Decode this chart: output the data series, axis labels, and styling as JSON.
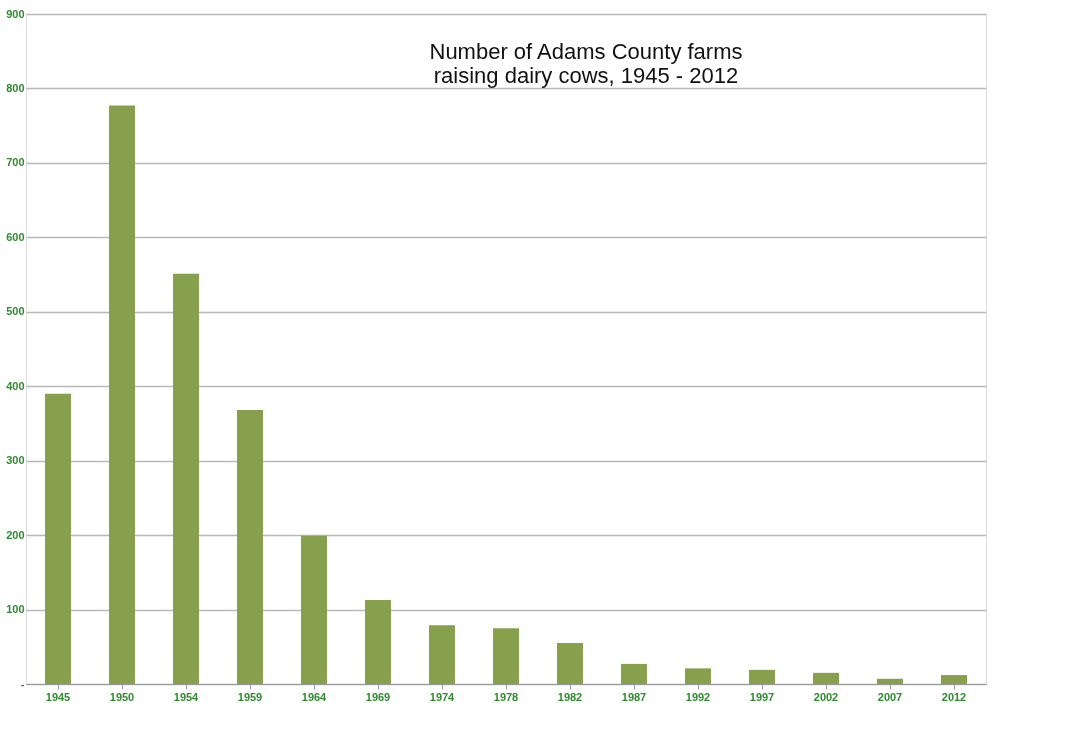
{
  "chart_data": {
    "type": "bar",
    "title": "Number of Adams County farms\nraising dairy cows, 1945 -  2012",
    "categories": [
      "1945",
      "1950",
      "1954",
      "1959",
      "1964",
      "1969",
      "1974",
      "1978",
      "1982",
      "1987",
      "1992",
      "1997",
      "2002",
      "2007",
      "2012"
    ],
    "values": [
      390,
      777,
      551,
      368,
      199,
      113,
      79,
      75,
      55,
      27,
      21,
      19,
      15,
      7,
      12
    ],
    "color": "#86a04d",
    "ylim": [
      0,
      900
    ],
    "yticks": [
      {
        "value": 0,
        "label": "-"
      },
      100,
      200,
      300,
      400,
      500,
      600,
      700,
      800,
      900
    ],
    "grid": "y"
  }
}
